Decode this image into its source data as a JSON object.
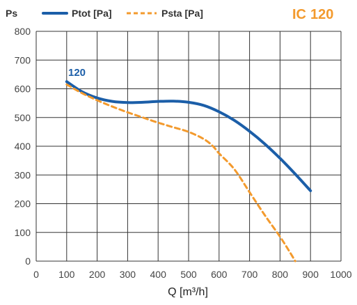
{
  "chart_data": {
    "type": "line",
    "title": "",
    "model": {
      "prefix": "IC",
      "number": "120"
    },
    "xlabel": "Q [m³/h]",
    "ylabel": "Ps",
    "xlim": [
      0,
      1000
    ],
    "ylim": [
      0,
      800
    ],
    "x_ticks": [
      0,
      100,
      200,
      300,
      400,
      500,
      600,
      700,
      800,
      900,
      1000
    ],
    "y_ticks": [
      0,
      100,
      200,
      300,
      400,
      500,
      600,
      700,
      800
    ],
    "grid": true,
    "legend_position": "top-left",
    "curve_label": "120",
    "series": [
      {
        "name": "Ptot [Pa]",
        "style": "solid",
        "color": "#1b5ea8",
        "x": [
          100,
          150,
          200,
          250,
          300,
          350,
          400,
          450,
          500,
          550,
          600,
          650,
          700,
          750,
          800,
          850,
          900
        ],
        "y": [
          625,
          590,
          568,
          556,
          552,
          553,
          556,
          557,
          553,
          542,
          520,
          490,
          452,
          408,
          358,
          303,
          245
        ]
      },
      {
        "name": "Psta [Pa]",
        "style": "dashed",
        "color": "#f39a2d",
        "x": [
          100,
          150,
          200,
          250,
          300,
          350,
          400,
          450,
          500,
          550,
          580,
          600,
          650,
          700,
          750,
          800,
          830,
          850
        ],
        "y": [
          615,
          585,
          560,
          538,
          518,
          500,
          482,
          466,
          450,
          425,
          400,
          375,
          320,
          240,
          160,
          85,
          35,
          0
        ]
      }
    ],
    "colors": {
      "model_prefix": "#f39a2d",
      "model_number": "#f39a2d",
      "curve_label": "#1b5ea8",
      "grid": "#333333"
    }
  }
}
